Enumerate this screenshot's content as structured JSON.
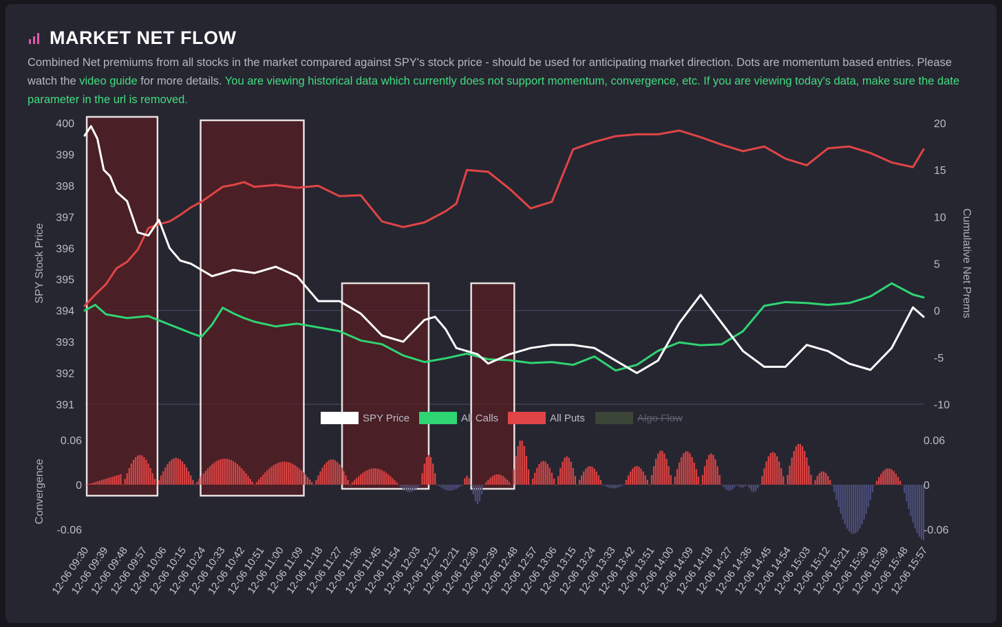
{
  "header": {
    "title": "MARKET NET FLOW",
    "icon": "bar-chart-icon",
    "desc_part1": "Combined Net premiums from all stocks in the market compared against SPY's stock price - should be used for anticipating market direction. Dots are momentum based entries. Please watch the ",
    "video_link": "video guide",
    "desc_part2": " for more details. ",
    "warning": "You are viewing historical data which currently does not support momentum, convergence, etc. If you are viewing today's data, make sure the date parameter in the url is removed."
  },
  "colors": {
    "spy": "#ffffff",
    "calls": "#2fd573",
    "puts": "#e04545",
    "algo": "#4a5a3d",
    "conv_pos": "#d84242",
    "conv_neg": "#4a4d78",
    "highlight_fill": "#5a1c22",
    "highlight_border": "#e8e0e0"
  },
  "chart_data": [
    {
      "type": "line",
      "ylabel_left": "SPY Stock Price",
      "ylabel_right": "Cumulative Net Prems",
      "yticks_left": [
        "400",
        "399",
        "398",
        "397",
        "396",
        "395",
        "394",
        "393",
        "392",
        "391"
      ],
      "yticks_right": [
        "20",
        "15",
        "10",
        "5",
        "0",
        "-5",
        "-10"
      ],
      "ylim_left": [
        391,
        400
      ],
      "ylim_right": [
        -10,
        20
      ],
      "x_tick_labels": [
        "12-06 09:30",
        "12-06 09:39",
        "12-06 09:48",
        "12-06 09:57",
        "12-06 10:06",
        "12-06 10:15",
        "12-06 10:24",
        "12-06 10:33",
        "12-06 10:42",
        "12-06 10:51",
        "12-06 11:00",
        "12-06 11:09",
        "12-06 11:18",
        "12-06 11:27",
        "12-06 11:36",
        "12-06 11:45",
        "12-06 11:54",
        "12-06 12:03",
        "12-06 12:12",
        "12-06 12:21",
        "12-06 12:30",
        "12-06 12:39",
        "12-06 12:48",
        "12-06 12:57",
        "12-06 13:06",
        "12-06 13:15",
        "12-06 13:24",
        "12-06 13:33",
        "12-06 13:42",
        "12-06 13:51",
        "12-06 14:00",
        "12-06 14:09",
        "12-06 14:18",
        "12-06 14:27",
        "12-06 14:36",
        "12-06 14:45",
        "12-06 14:54",
        "12-06 15:03",
        "12-06 15:12",
        "12-06 15:21",
        "12-06 15:30",
        "12-06 15:39",
        "12-06 15:48",
        "12-06 15:57"
      ],
      "legend": [
        "SPY Price",
        "All Calls",
        "All Puts",
        "Algo Flow"
      ],
      "legend_hidden": [
        false,
        false,
        false,
        true
      ],
      "series": [
        {
          "name": "SPY Price",
          "axis": "left",
          "t": [
            0,
            3,
            6,
            9,
            12,
            15,
            20,
            25,
            30,
            35,
            40,
            45,
            50,
            60,
            70,
            80,
            90,
            100,
            110,
            120,
            130,
            140,
            150,
            160,
            165,
            170,
            175,
            180,
            185,
            190,
            200,
            210,
            220,
            230,
            240,
            250,
            260,
            270,
            280,
            290,
            300,
            310,
            320,
            330,
            340,
            350,
            360,
            370,
            380,
            390,
            395
          ],
          "values": [
            399.6,
            399.9,
            399.5,
            398.5,
            398.3,
            397.8,
            397.5,
            396.5,
            396.4,
            396.9,
            396.0,
            395.6,
            395.5,
            395.1,
            395.3,
            395.2,
            395.4,
            395.1,
            394.3,
            394.3,
            393.9,
            393.2,
            393.0,
            393.7,
            393.8,
            393.4,
            392.8,
            392.7,
            392.6,
            392.3,
            392.6,
            392.8,
            392.9,
            392.9,
            392.8,
            392.4,
            392.0,
            392.4,
            393.6,
            394.5,
            393.6,
            392.7,
            392.2,
            392.2,
            392.9,
            392.7,
            392.3,
            392.1,
            392.8,
            394.1,
            393.8
          ]
        },
        {
          "name": "All Calls",
          "axis": "right",
          "t": [
            0,
            5,
            10,
            20,
            30,
            40,
            50,
            55,
            60,
            65,
            70,
            75,
            80,
            90,
            100,
            110,
            120,
            130,
            140,
            150,
            160,
            170,
            180,
            190,
            200,
            210,
            220,
            230,
            240,
            250,
            260,
            270,
            280,
            290,
            300,
            310,
            320,
            330,
            340,
            350,
            360,
            370,
            380,
            390,
            395
          ],
          "values": [
            0,
            0.6,
            -0.4,
            -0.8,
            -0.6,
            -1.5,
            -2.4,
            -2.8,
            -1.5,
            0.3,
            -0.3,
            -0.8,
            -1.2,
            -1.7,
            -1.4,
            -1.8,
            -2.2,
            -3.2,
            -3.6,
            -4.8,
            -5.5,
            -5.1,
            -4.6,
            -5.2,
            -5.3,
            -5.6,
            -5.5,
            -5.8,
            -4.9,
            -6.4,
            -5.8,
            -4.3,
            -3.4,
            -3.7,
            -3.6,
            -2.2,
            0.5,
            0.9,
            0.8,
            0.6,
            0.8,
            1.5,
            2.9,
            1.7,
            1.4
          ]
        },
        {
          "name": "All Puts",
          "axis": "right",
          "t": [
            0,
            5,
            10,
            15,
            20,
            25,
            30,
            35,
            40,
            45,
            50,
            55,
            60,
            65,
            70,
            75,
            80,
            90,
            100,
            110,
            120,
            130,
            140,
            150,
            160,
            170,
            175,
            180,
            190,
            200,
            210,
            220,
            230,
            240,
            250,
            260,
            270,
            280,
            290,
            300,
            310,
            320,
            330,
            340,
            350,
            360,
            370,
            380,
            390,
            395
          ],
          "values": [
            0.5,
            1.7,
            2.8,
            4.5,
            5.2,
            6.5,
            8.8,
            9.2,
            9.5,
            10.2,
            11.0,
            11.6,
            12.4,
            13.2,
            13.4,
            13.7,
            13.2,
            13.4,
            13.1,
            13.3,
            12.2,
            12.3,
            9.5,
            8.9,
            9.4,
            10.6,
            11.4,
            15.0,
            14.8,
            13.0,
            10.9,
            11.6,
            17.2,
            18.0,
            18.6,
            18.8,
            18.8,
            19.2,
            18.5,
            17.7,
            17.0,
            17.5,
            16.2,
            15.5,
            17.3,
            17.5,
            16.8,
            15.8,
            15.3,
            17.2
          ]
        }
      ],
      "highlight_intervals": [
        [
          1,
          34.3
        ],
        [
          54.6,
          78.6
        ],
        [
          78.6,
          103.2
        ],
        [
          121.2,
          162
        ],
        [
          182,
          202.3
        ]
      ]
    },
    {
      "type": "bar",
      "ylabel": "Convergence",
      "yticks_left": [
        "0.06",
        "0",
        "-0.06"
      ],
      "yticks_right": [
        "0.06",
        "0",
        "-0.06"
      ],
      "ylim": [
        -0.06,
        0.06
      ],
      "segments": [
        {
          "from": 0,
          "to": 1,
          "shape": "flat",
          "peak": 0
        },
        {
          "from": 1,
          "to": 18,
          "shape": "ramp",
          "peak": 0.015
        },
        {
          "from": 18,
          "to": 34,
          "shape": "bump",
          "peak": 0.04
        },
        {
          "from": 34,
          "to": 52,
          "shape": "bump",
          "peak": 0.036
        },
        {
          "from": 52,
          "to": 80,
          "shape": "bump",
          "peak": 0.035
        },
        {
          "from": 80,
          "to": 108,
          "shape": "bump",
          "peak": 0.031
        },
        {
          "from": 108,
          "to": 125,
          "shape": "bump",
          "peak": 0.034
        },
        {
          "from": 125,
          "to": 148,
          "shape": "bump",
          "peak": 0.022
        },
        {
          "from": 148,
          "to": 158,
          "shape": "bump",
          "peak": -0.01
        },
        {
          "from": 158,
          "to": 166,
          "shape": "bump",
          "peak": 0.04
        },
        {
          "from": 166,
          "to": 178,
          "shape": "bump",
          "peak": -0.008
        },
        {
          "from": 178,
          "to": 182,
          "shape": "bump",
          "peak": 0.012
        },
        {
          "from": 182,
          "to": 188,
          "shape": "bump",
          "peak": -0.026
        },
        {
          "from": 188,
          "to": 201,
          "shape": "bump",
          "peak": 0.014
        },
        {
          "from": 201,
          "to": 210,
          "shape": "bump",
          "peak": 0.06
        },
        {
          "from": 210,
          "to": 222,
          "shape": "bump",
          "peak": 0.032
        },
        {
          "from": 222,
          "to": 232,
          "shape": "bump",
          "peak": 0.038
        },
        {
          "from": 232,
          "to": 244,
          "shape": "bump",
          "peak": 0.025
        },
        {
          "from": 244,
          "to": 254,
          "shape": "bump",
          "peak": -0.005
        },
        {
          "from": 254,
          "to": 266,
          "shape": "bump",
          "peak": 0.025
        },
        {
          "from": 266,
          "to": 277,
          "shape": "bump",
          "peak": 0.046
        },
        {
          "from": 277,
          "to": 290,
          "shape": "bump",
          "peak": 0.045
        },
        {
          "from": 290,
          "to": 300,
          "shape": "bump",
          "peak": 0.042
        },
        {
          "from": 300,
          "to": 307,
          "shape": "bump",
          "peak": -0.008
        },
        {
          "from": 307,
          "to": 312,
          "shape": "bump",
          "peak": -0.004
        },
        {
          "from": 312,
          "to": 318,
          "shape": "bump",
          "peak": -0.01
        },
        {
          "from": 318,
          "to": 330,
          "shape": "bump",
          "peak": 0.044
        },
        {
          "from": 330,
          "to": 343,
          "shape": "bump",
          "peak": 0.055
        },
        {
          "from": 343,
          "to": 352,
          "shape": "bump",
          "peak": 0.018
        },
        {
          "from": 352,
          "to": 372,
          "shape": "bump",
          "peak": -0.066
        },
        {
          "from": 372,
          "to": 385,
          "shape": "bump",
          "peak": 0.022
        },
        {
          "from": 385,
          "to": 406,
          "shape": "bump",
          "peak": -0.075
        }
      ]
    }
  ]
}
